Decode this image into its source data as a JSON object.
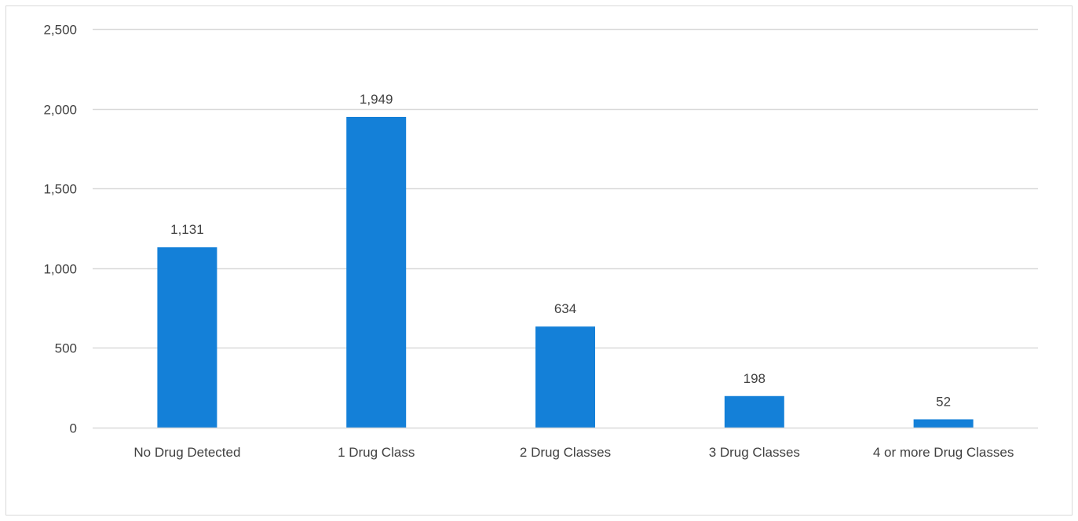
{
  "chart_data": {
    "type": "bar",
    "categories": [
      "No Drug Detected",
      "1 Drug Class",
      "2 Drug Classes",
      "3 Drug Classes",
      "4 or more Drug Classes"
    ],
    "series": [
      {
        "values": [
          1131,
          1949,
          634,
          198,
          52
        ]
      }
    ],
    "data_labels": [
      "1,131",
      "1,949",
      "634",
      "198",
      "52"
    ],
    "y_ticks": [
      {
        "value": 0,
        "label": "0"
      },
      {
        "value": 500,
        "label": "500"
      },
      {
        "value": 1000,
        "label": "1,000"
      },
      {
        "value": 1500,
        "label": "1,500"
      },
      {
        "value": 2000,
        "label": "2,000"
      },
      {
        "value": 2500,
        "label": "2,500"
      }
    ],
    "ylim": [
      0,
      2500
    ],
    "title": "",
    "xlabel": "",
    "ylabel": "",
    "grid": true,
    "legend": "none",
    "colors": {
      "bar": "#1480d8",
      "grid": "#d9d9d9",
      "text": "#404040"
    }
  }
}
